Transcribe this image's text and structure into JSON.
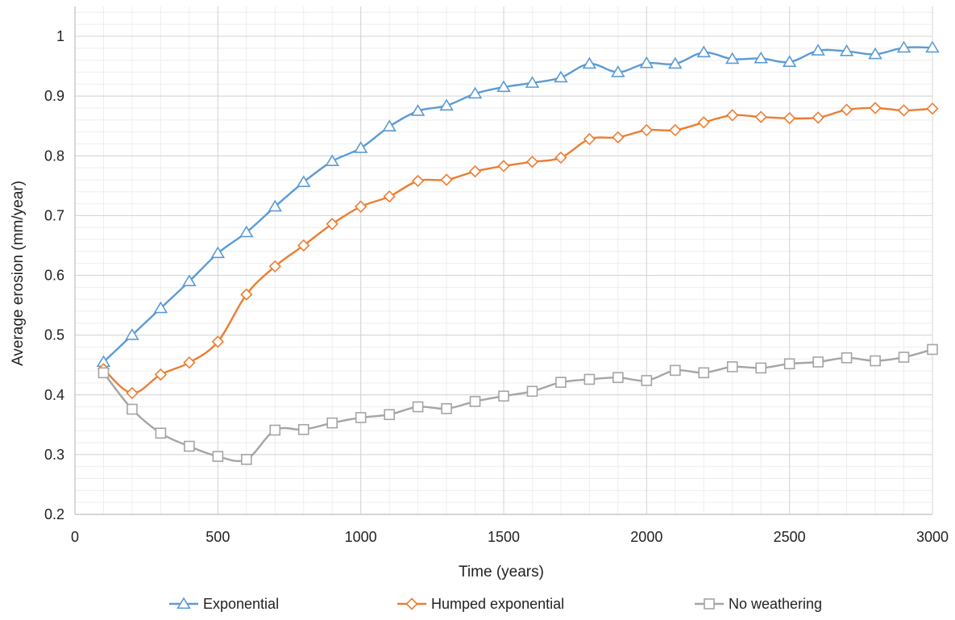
{
  "chart_data": {
    "type": "line",
    "title": "",
    "xlabel": "Time (years)",
    "ylabel": "Average erosion (mm/year)",
    "xlim": [
      0,
      3000
    ],
    "ylim": [
      0.2,
      1.05
    ],
    "x_ticks": [
      0,
      500,
      1000,
      1500,
      2000,
      2500,
      3000
    ],
    "y_ticks": [
      0.2,
      0.3,
      0.4,
      0.5,
      0.6,
      0.7,
      0.8,
      0.9,
      1
    ],
    "x_tick_labels": [
      "0",
      "500",
      "1000",
      "1500",
      "2000",
      "2500",
      "3000"
    ],
    "y_tick_labels": [
      "0.2",
      "0.3",
      "0.4",
      "0.5",
      "0.6",
      "0.7",
      "0.8",
      "0.9",
      "1"
    ],
    "grid": true,
    "legend_position": "bottom",
    "x": [
      100,
      200,
      300,
      400,
      500,
      600,
      700,
      800,
      900,
      1000,
      1100,
      1200,
      1300,
      1400,
      1500,
      1600,
      1700,
      1800,
      1900,
      2000,
      2100,
      2200,
      2300,
      2400,
      2500,
      2600,
      2700,
      2800,
      2900,
      3000
    ],
    "series": [
      {
        "name": "Exponential",
        "color": "#5b9bd5",
        "marker": "triangle",
        "values": [
          0.455,
          0.5,
          0.545,
          0.59,
          0.637,
          0.672,
          0.715,
          0.756,
          0.791,
          0.813,
          0.849,
          0.875,
          0.884,
          0.904,
          0.915,
          0.922,
          0.931,
          0.954,
          0.94,
          0.955,
          0.954,
          0.973,
          0.962,
          0.963,
          0.957,
          0.976,
          0.975,
          0.97,
          0.981,
          0.981
        ]
      },
      {
        "name": "Humped exponential",
        "color": "#ed7d31",
        "marker": "diamond",
        "values": [
          0.443,
          0.403,
          0.434,
          0.454,
          0.489,
          0.568,
          0.615,
          0.65,
          0.686,
          0.715,
          0.732,
          0.758,
          0.76,
          0.774,
          0.783,
          0.79,
          0.797,
          0.828,
          0.831,
          0.843,
          0.843,
          0.856,
          0.868,
          0.865,
          0.863,
          0.864,
          0.877,
          0.88,
          0.876,
          0.879
        ]
      },
      {
        "name": "No weathering",
        "color": "#a5a5a5",
        "marker": "square",
        "values": [
          0.437,
          0.376,
          0.336,
          0.314,
          0.297,
          0.292,
          0.341,
          0.342,
          0.353,
          0.362,
          0.367,
          0.38,
          0.377,
          0.389,
          0.398,
          0.406,
          0.421,
          0.426,
          0.429,
          0.424,
          0.441,
          0.437,
          0.447,
          0.445,
          0.452,
          0.455,
          0.462,
          0.457,
          0.463,
          0.476
        ]
      }
    ]
  }
}
